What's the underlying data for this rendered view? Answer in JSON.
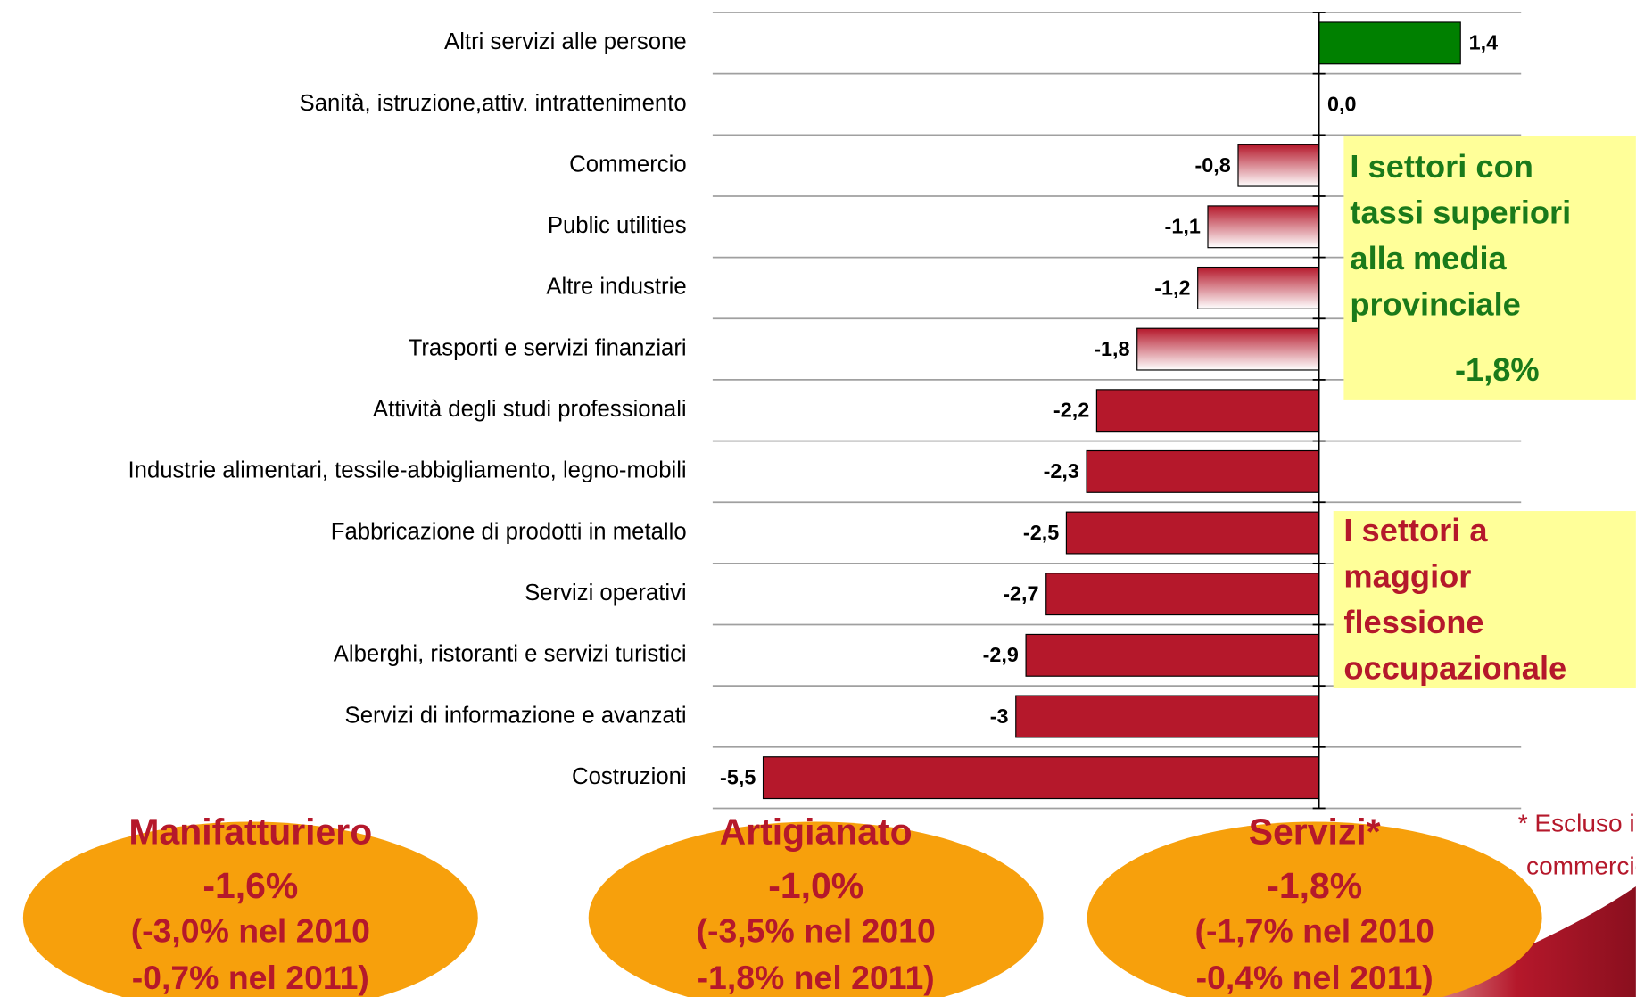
{
  "chart_data": {
    "type": "bar",
    "orientation": "horizontal",
    "categories": [
      "Altri servizi alle persone",
      "Sanità, istruzione,attiv. intrattenimento",
      "Commercio",
      "Public utilities",
      "Altre industrie",
      "Trasporti e servizi finanziari",
      "Attività degli studi professionali",
      "Industrie alimentari, tessile-abbigliamento, legno-mobili",
      "Fabbricazione di prodotti in metallo",
      "Servizi operativi",
      "Alberghi, ristoranti e servizi turistici",
      "Servizi di informazione e avanzati",
      "Costruzioni"
    ],
    "values": [
      1.4,
      0.0,
      -0.8,
      -1.1,
      -1.2,
      -1.8,
      -2.2,
      -2.3,
      -2.5,
      -2.7,
      -2.9,
      -3,
      -5.5
    ],
    "value_labels": [
      "1,4",
      "0,0",
      "-0,8",
      "-1,1",
      "-1,2",
      "-1,8",
      "-2,2",
      "-2,3",
      "-2,5",
      "-2,7",
      "-2,9",
      "-3",
      "-5,5"
    ],
    "bar_fills": [
      "#008000",
      "#008000",
      "gradient",
      "gradient",
      "gradient",
      "gradient",
      "#b5182b",
      "#b5182b",
      "#b5182b",
      "#b5182b",
      "#b5182b",
      "#b5182b",
      "#b5182b"
    ],
    "gradient_color": "#b5182b",
    "xlim": [
      -6,
      2
    ],
    "grid": true,
    "annotations": [
      {
        "lines": [
          "I settori con",
          "tassi superiori",
          "alla media",
          "provinciale"
        ],
        "value": "-1,8%",
        "color": "#1a7a1a"
      },
      {
        "lines": [
          "I  settori a",
          "maggior",
          "flessione",
          "occupazionale"
        ],
        "color": "#b5182b"
      }
    ],
    "summaries": [
      {
        "title": "Manifatturiero",
        "value": "-1,6%",
        "notes": [
          "(-3,0% nel 2010",
          "-0,7% nel 2011)"
        ]
      },
      {
        "title": "Artigianato",
        "value": "-1,0%",
        "notes": [
          "(-3,5% nel 2010",
          "-1,8% nel 2011)"
        ]
      },
      {
        "title": "Servizi*",
        "value": "-1,8%",
        "notes": [
          "(-1,7% nel 2010",
          "-0,4% nel 2011)"
        ]
      }
    ],
    "footnote": [
      "* Escluso il",
      "commercio"
    ]
  }
}
